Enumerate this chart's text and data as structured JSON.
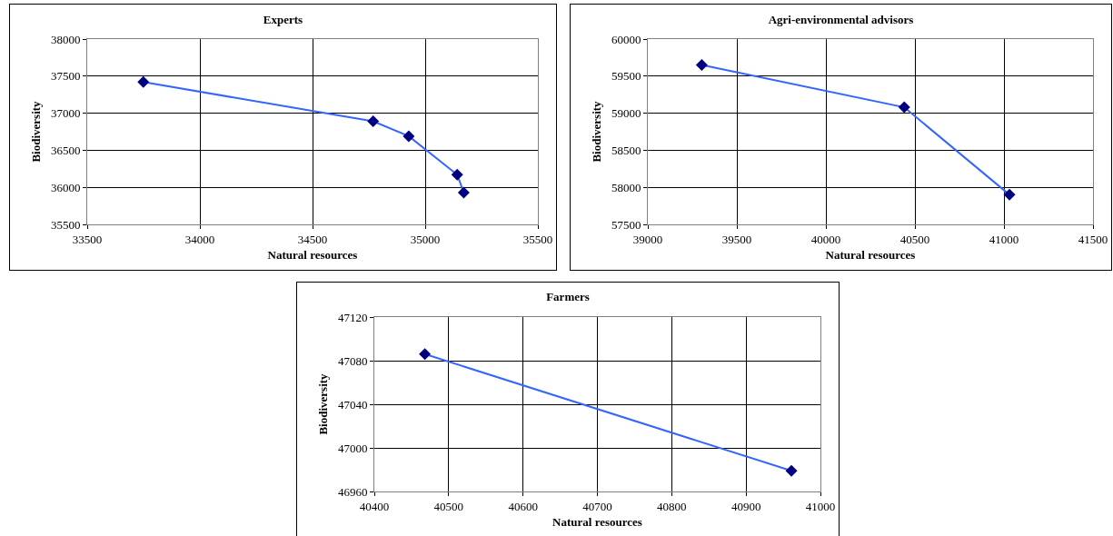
{
  "chart_data": [
    {
      "type": "line",
      "title": "Experts",
      "xlabel": "Natural resources",
      "ylabel": "Biodiversity",
      "x": [
        33749,
        34769,
        34927,
        35142,
        35171
      ],
      "series": [
        {
          "color": "#3366ff",
          "values": [
            37420,
            36890,
            36690,
            36170,
            35930
          ]
        }
      ],
      "xlim": [
        33500,
        35500
      ],
      "xticks": [
        33500,
        34000,
        34500,
        35000,
        35500
      ],
      "ylim": [
        35500,
        38000
      ],
      "yticks": [
        35500,
        36000,
        36500,
        37000,
        37500,
        38000
      ],
      "grid": true,
      "marker": "diamond",
      "line_style": "solid"
    },
    {
      "type": "line",
      "title": "Agri-environmental advisors",
      "xlabel": "Natural resources",
      "ylabel": "Biodiversity",
      "x": [
        39303,
        40440,
        41031
      ],
      "series": [
        {
          "color": "#3366ff",
          "values": [
            59650,
            59080,
            57900
          ]
        }
      ],
      "xlim": [
        39000,
        41500
      ],
      "xticks": [
        39000,
        39500,
        40000,
        40500,
        41000,
        41500
      ],
      "ylim": [
        57500,
        60000
      ],
      "yticks": [
        57500,
        58000,
        58500,
        59000,
        59500,
        60000
      ],
      "grid": true,
      "marker": "diamond",
      "line_style": "solid"
    },
    {
      "type": "line",
      "title": "Farmers",
      "xlabel": "Natural resources",
      "ylabel": "Biodiversity",
      "x": [
        40468,
        40961
      ],
      "series": [
        {
          "color": "#3366ff",
          "values": [
            47086,
            46979
          ]
        }
      ],
      "xlim": [
        40400,
        41000
      ],
      "xticks": [
        40400,
        40500,
        40600,
        40700,
        40800,
        40900,
        41000
      ],
      "ylim": [
        46960,
        47120
      ],
      "yticks": [
        46960,
        47000,
        47040,
        47080,
        47120
      ],
      "grid": true,
      "marker": "diamond",
      "line_style": "solid"
    }
  ]
}
